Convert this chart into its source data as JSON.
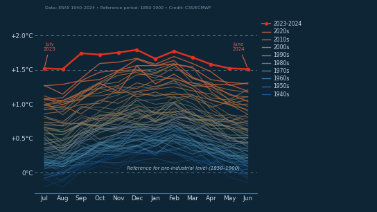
{
  "background_color": "#0d2535",
  "text_color": "#c8d8e8",
  "subtitle": "Data: ERA5 1940–2024 • Reference period: 1850-1900 • Credit: C3S/ECMWF",
  "x_labels": [
    "Jul",
    "Aug",
    "Sep",
    "Oct",
    "Nov",
    "Dec",
    "Jan",
    "Feb",
    "Mar",
    "Apr",
    "May",
    "Jun"
  ],
  "y_ticks": [
    0.0,
    0.5,
    1.0,
    1.5,
    2.0
  ],
  "y_tick_labels": [
    "0°C",
    "+0.5°C",
    "+1.0°C",
    "+1.5°C",
    "+2.0°C"
  ],
  "ylim": [
    -0.3,
    2.2
  ],
  "dashed_lines": [
    0.0,
    1.5,
    2.0
  ],
  "line_2023_2024": [
    1.52,
    1.51,
    1.74,
    1.72,
    1.75,
    1.79,
    1.66,
    1.77,
    1.68,
    1.58,
    1.52,
    1.51
  ],
  "legend_entries": [
    "2023-2024",
    "2020s",
    "2010s",
    "2000s",
    "1990s",
    "1980s",
    "1970s",
    "1960s",
    "1950s",
    "1940s"
  ],
  "legend_colors": [
    "#e03020",
    "#c86040",
    "#b07040",
    "#987858",
    "#808870",
    "#708090",
    "#5088a0",
    "#3878a8",
    "#2868a0",
    "#1858a0"
  ]
}
